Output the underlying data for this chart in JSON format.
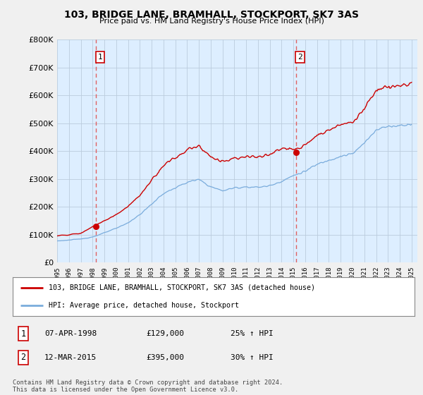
{
  "title": "103, BRIDGE LANE, BRAMHALL, STOCKPORT, SK7 3AS",
  "subtitle": "Price paid vs. HM Land Registry's House Price Index (HPI)",
  "legend_line1": "103, BRIDGE LANE, BRAMHALL, STOCKPORT, SK7 3AS (detached house)",
  "legend_line2": "HPI: Average price, detached house, Stockport",
  "footnote": "Contains HM Land Registry data © Crown copyright and database right 2024.\nThis data is licensed under the Open Government Licence v3.0.",
  "purchase1_date": "07-APR-1998",
  "purchase1_price": "£129,000",
  "purchase1_hpi": "25% ↑ HPI",
  "purchase2_date": "12-MAR-2015",
  "purchase2_price": "£395,000",
  "purchase2_hpi": "30% ↑ HPI",
  "label1": "1",
  "label2": "2",
  "red_color": "#cc0000",
  "blue_color": "#7aacdc",
  "dashed_color": "#e06060",
  "bg_color": "#f0f0f0",
  "plot_bg_color": "#ddeeff",
  "grid_color": "#bbccdd",
  "ylim": [
    0,
    800000
  ],
  "yticks": [
    0,
    100000,
    200000,
    300000,
    400000,
    500000,
    600000,
    700000,
    800000
  ],
  "ytick_labels": [
    "£0",
    "£100K",
    "£200K",
    "£300K",
    "£400K",
    "£500K",
    "£600K",
    "£700K",
    "£800K"
  ],
  "x_start_year": 1995.0,
  "x_end_year": 2025.5,
  "purchase1_year": 1998.27,
  "purchase2_year": 2015.21,
  "purchase1_value": 129000,
  "purchase2_value": 395000
}
